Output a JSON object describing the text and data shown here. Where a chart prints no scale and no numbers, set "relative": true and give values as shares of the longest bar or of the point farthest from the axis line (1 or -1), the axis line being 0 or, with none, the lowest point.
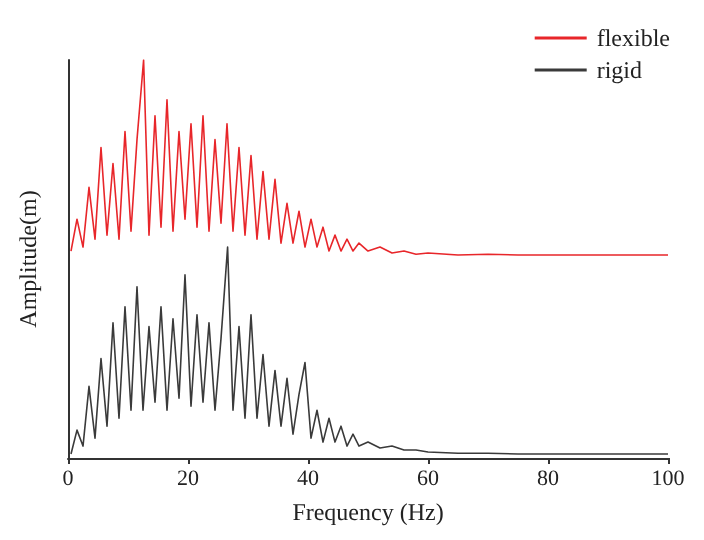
{
  "chart_data": {
    "type": "line",
    "relative": true,
    "xlabel": "Frequency (Hz)",
    "ylabel": "Amplitude(m)",
    "xlim": [
      0,
      100
    ],
    "xticks": [
      0,
      20,
      40,
      60,
      80,
      100
    ],
    "legend": "top right",
    "marker": "none",
    "line_style": "solid",
    "grid": false,
    "series": [
      {
        "name": "flexible",
        "color": "#e8262a",
        "x": [
          0.5,
          1.5,
          2.5,
          3.5,
          4.5,
          5.5,
          6.5,
          7.5,
          8.5,
          9.5,
          10.5,
          11.5,
          12.6,
          13.5,
          14.5,
          15.5,
          16.5,
          17.5,
          18.5,
          19.5,
          20.5,
          21.5,
          22.5,
          23.5,
          24.5,
          25.5,
          26.5,
          27.5,
          28.5,
          29.5,
          30.5,
          31.5,
          32.5,
          33.5,
          34.5,
          35.5,
          36.5,
          37.5,
          38.5,
          39.5,
          40.5,
          41.5,
          42.5,
          43.5,
          44.5,
          45.5,
          46.5,
          47.5,
          48.5,
          50,
          52,
          54,
          56,
          58,
          60,
          65,
          70,
          75,
          80,
          85,
          90,
          95,
          100
        ],
        "values": [
          0.52,
          0.6,
          0.53,
          0.68,
          0.55,
          0.78,
          0.56,
          0.74,
          0.55,
          0.82,
          0.57,
          0.8,
          1.0,
          0.56,
          0.86,
          0.58,
          0.9,
          0.57,
          0.82,
          0.6,
          0.84,
          0.58,
          0.86,
          0.57,
          0.8,
          0.59,
          0.84,
          0.57,
          0.78,
          0.56,
          0.76,
          0.55,
          0.72,
          0.55,
          0.7,
          0.54,
          0.64,
          0.54,
          0.62,
          0.53,
          0.6,
          0.53,
          0.58,
          0.52,
          0.56,
          0.52,
          0.55,
          0.52,
          0.54,
          0.52,
          0.53,
          0.515,
          0.52,
          0.512,
          0.515,
          0.51,
          0.512,
          0.51,
          0.51,
          0.51,
          0.51,
          0.51,
          0.51
        ]
      },
      {
        "name": "rigid",
        "color": "#3a3a3a",
        "x": [
          0.5,
          1.5,
          2.5,
          3.5,
          4.5,
          5.5,
          6.5,
          7.5,
          8.5,
          9.5,
          10.5,
          11.5,
          12.5,
          13.5,
          14.5,
          15.5,
          16.5,
          17.5,
          18.5,
          19.5,
          20.5,
          21.5,
          22.5,
          23.5,
          24.5,
          25.5,
          26.6,
          27.5,
          28.5,
          29.5,
          30.5,
          31.5,
          32.5,
          33.5,
          34.5,
          35.5,
          36.5,
          37.5,
          38.5,
          39.5,
          40.5,
          41.5,
          42.5,
          43.5,
          44.5,
          45.5,
          46.5,
          47.5,
          48.5,
          50,
          52,
          54,
          56,
          58,
          60,
          65,
          70,
          75,
          80,
          85,
          90,
          95,
          100
        ],
        "values": [
          0.01,
          0.07,
          0.03,
          0.18,
          0.05,
          0.25,
          0.08,
          0.34,
          0.1,
          0.38,
          0.12,
          0.43,
          0.12,
          0.33,
          0.14,
          0.38,
          0.12,
          0.35,
          0.15,
          0.46,
          0.13,
          0.36,
          0.14,
          0.34,
          0.12,
          0.3,
          0.53,
          0.12,
          0.33,
          0.1,
          0.36,
          0.1,
          0.26,
          0.08,
          0.22,
          0.08,
          0.2,
          0.06,
          0.16,
          0.24,
          0.05,
          0.12,
          0.04,
          0.1,
          0.04,
          0.08,
          0.03,
          0.06,
          0.03,
          0.04,
          0.025,
          0.03,
          0.02,
          0.02,
          0.015,
          0.012,
          0.012,
          0.01,
          0.01,
          0.01,
          0.01,
          0.01,
          0.01
        ]
      }
    ]
  }
}
